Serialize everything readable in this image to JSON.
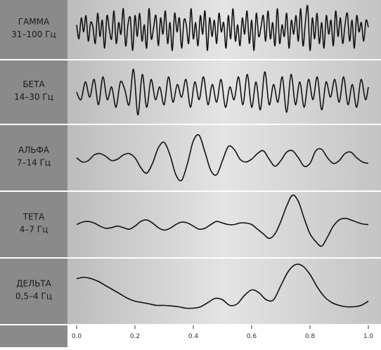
{
  "chart_data": [
    {
      "type": "line",
      "name": "ГАММА",
      "range": "31–100 Гц",
      "title": "",
      "xlabel": "",
      "ylabel": "",
      "xlim": [
        0,
        1
      ],
      "x": [
        0.0,
        0.008,
        0.016,
        0.024,
        0.032,
        0.04,
        0.048,
        0.056,
        0.064,
        0.072,
        0.08,
        0.088,
        0.096,
        0.104,
        0.112,
        0.12,
        0.128,
        0.136,
        0.144,
        0.152,
        0.16,
        0.168,
        0.176,
        0.184,
        0.192,
        0.2,
        0.208,
        0.216,
        0.224,
        0.232,
        0.24,
        0.248,
        0.256,
        0.264,
        0.272,
        0.28,
        0.288,
        0.296,
        0.304,
        0.312,
        0.32,
        0.328,
        0.336,
        0.344,
        0.352,
        0.36,
        0.368,
        0.376,
        0.384,
        0.392,
        0.4,
        0.408,
        0.416,
        0.424,
        0.432,
        0.44,
        0.448,
        0.456,
        0.464,
        0.472,
        0.48,
        0.488,
        0.496,
        0.504,
        0.512,
        0.52,
        0.528,
        0.536,
        0.544,
        0.552,
        0.56,
        0.568,
        0.576,
        0.584,
        0.592,
        0.6,
        0.608,
        0.616,
        0.624,
        0.632,
        0.64,
        0.648,
        0.656,
        0.664,
        0.672,
        0.68,
        0.688,
        0.696,
        0.704,
        0.712,
        0.72,
        0.728,
        0.736,
        0.744,
        0.752,
        0.76,
        0.768,
        0.776,
        0.784,
        0.792,
        0.8,
        0.808,
        0.816,
        0.824,
        0.832,
        0.84,
        0.848,
        0.856,
        0.864,
        0.872,
        0.88,
        0.888,
        0.896,
        0.904,
        0.912,
        0.92,
        0.928,
        0.936,
        0.944,
        0.952,
        0.96,
        0.968,
        0.976,
        0.984,
        0.992,
        1.0
      ],
      "y": [
        0.2,
        -0.4,
        0.5,
        -0.1,
        0.6,
        -0.5,
        0.3,
        0.1,
        -0.6,
        0.7,
        -0.3,
        0.4,
        -0.8,
        0.6,
        0.0,
        -0.4,
        0.8,
        -0.6,
        0.3,
        -0.2,
        0.9,
        -0.7,
        0.2,
        0.5,
        -0.9,
        0.6,
        -0.3,
        0.7,
        -0.5,
        0.2,
        -0.8,
        0.9,
        -0.4,
        0.1,
        0.6,
        -0.7,
        0.5,
        -0.2,
        0.8,
        -0.6,
        0.3,
        -0.9,
        0.7,
        -0.1,
        0.5,
        -0.8,
        0.4,
        0.2,
        -0.6,
        0.9,
        -0.4,
        0.3,
        -0.7,
        0.6,
        -0.2,
        0.8,
        -0.9,
        0.5,
        -0.3,
        0.4,
        -0.6,
        0.7,
        -0.1,
        0.3,
        -0.8,
        0.6,
        -0.4,
        0.9,
        -0.5,
        0.2,
        -0.7,
        0.5,
        -0.2,
        0.8,
        -0.6,
        0.4,
        -0.9,
        0.7,
        -0.3,
        0.1,
        0.6,
        -0.5,
        0.8,
        -0.4,
        0.3,
        -0.7,
        0.9,
        -0.6,
        0.2,
        -0.3,
        0.7,
        -0.8,
        0.4,
        -0.2,
        0.6,
        -0.5,
        0.9,
        -0.7,
        0.3,
        1.0,
        -0.9,
        0.5,
        -0.4,
        0.7,
        -0.6,
        0.3,
        -0.8,
        0.6,
        -0.2,
        0.4,
        -0.7,
        0.8,
        -0.3,
        0.5,
        -0.6,
        0.2,
        0.7,
        -0.5,
        0.4,
        -0.8,
        0.6,
        -0.1,
        0.3,
        -0.5,
        0.4,
        0.1
      ]
    },
    {
      "type": "line",
      "name": "БЕТА",
      "range": "14–30 Гц",
      "title": "",
      "xlabel": "",
      "ylabel": "",
      "xlim": [
        0,
        1
      ],
      "x": [
        0.0,
        0.015,
        0.03,
        0.045,
        0.06,
        0.075,
        0.09,
        0.105,
        0.12,
        0.135,
        0.15,
        0.165,
        0.18,
        0.195,
        0.21,
        0.225,
        0.24,
        0.255,
        0.27,
        0.285,
        0.3,
        0.315,
        0.33,
        0.345,
        0.36,
        0.375,
        0.39,
        0.405,
        0.42,
        0.435,
        0.45,
        0.465,
        0.48,
        0.495,
        0.51,
        0.525,
        0.54,
        0.555,
        0.57,
        0.585,
        0.6,
        0.615,
        0.63,
        0.645,
        0.66,
        0.675,
        0.69,
        0.705,
        0.72,
        0.735,
        0.75,
        0.765,
        0.78,
        0.795,
        0.81,
        0.825,
        0.84,
        0.855,
        0.87,
        0.885,
        0.9,
        0.915,
        0.93,
        0.945,
        0.96,
        0.975,
        0.99,
        1.0
      ],
      "y": [
        0.0,
        -0.3,
        0.4,
        -0.2,
        0.5,
        -0.5,
        0.6,
        -0.3,
        0.2,
        -0.6,
        0.4,
        0.1,
        -0.5,
        0.9,
        -0.9,
        0.7,
        -0.6,
        0.5,
        -0.3,
        0.2,
        -0.5,
        0.6,
        -0.4,
        0.3,
        -0.2,
        0.5,
        -0.6,
        0.4,
        -0.3,
        0.6,
        -0.5,
        0.3,
        -0.4,
        0.5,
        -0.6,
        0.2,
        -0.3,
        0.6,
        -0.5,
        0.7,
        -0.6,
        0.4,
        -0.7,
        0.8,
        -0.5,
        0.3,
        -0.4,
        0.6,
        -0.8,
        0.7,
        -0.5,
        0.4,
        -0.6,
        0.5,
        -0.3,
        0.6,
        -0.7,
        0.4,
        -0.2,
        0.5,
        -0.4,
        0.6,
        -0.5,
        0.3,
        -0.6,
        0.5,
        -0.3,
        0.2
      ]
    },
    {
      "type": "line",
      "name": "АЛЬФА",
      "range": "7–14 Гц",
      "title": "",
      "xlabel": "",
      "ylabel": "",
      "xlim": [
        0,
        1
      ],
      "x": [
        0.0,
        0.02,
        0.04,
        0.06,
        0.08,
        0.1,
        0.12,
        0.14,
        0.16,
        0.18,
        0.2,
        0.22,
        0.24,
        0.26,
        0.28,
        0.3,
        0.32,
        0.34,
        0.36,
        0.38,
        0.4,
        0.42,
        0.44,
        0.46,
        0.48,
        0.5,
        0.52,
        0.54,
        0.56,
        0.58,
        0.6,
        0.62,
        0.64,
        0.66,
        0.68,
        0.7,
        0.72,
        0.74,
        0.76,
        0.78,
        0.8,
        0.82,
        0.84,
        0.86,
        0.88,
        0.9,
        0.92,
        0.94,
        0.96,
        0.98,
        1.0
      ],
      "y": [
        0.0,
        -0.15,
        -0.1,
        0.1,
        0.15,
        0.05,
        -0.1,
        -0.05,
        0.1,
        0.15,
        0.0,
        -0.35,
        -0.55,
        -0.2,
        0.35,
        0.55,
        0.1,
        -0.6,
        -0.8,
        -0.2,
        0.6,
        0.8,
        0.2,
        -0.45,
        -0.6,
        -0.1,
        0.4,
        0.3,
        -0.05,
        -0.15,
        -0.05,
        0.15,
        0.25,
        -0.05,
        -0.3,
        -0.1,
        0.2,
        0.25,
        0.0,
        -0.3,
        -0.2,
        0.25,
        0.3,
        0.0,
        -0.2,
        -0.1,
        0.15,
        0.2,
        0.0,
        -0.15,
        -0.2
      ]
    },
    {
      "type": "line",
      "name": "ТЕТА",
      "range": "4–7 Гц",
      "title": "",
      "xlabel": "",
      "ylabel": "",
      "xlim": [
        0,
        1
      ],
      "x": [
        0.0,
        0.02,
        0.04,
        0.06,
        0.08,
        0.1,
        0.12,
        0.14,
        0.16,
        0.18,
        0.2,
        0.22,
        0.24,
        0.26,
        0.28,
        0.3,
        0.32,
        0.34,
        0.36,
        0.38,
        0.4,
        0.42,
        0.44,
        0.46,
        0.48,
        0.5,
        0.52,
        0.54,
        0.56,
        0.58,
        0.6,
        0.62,
        0.64,
        0.66,
        0.68,
        0.7,
        0.72,
        0.74,
        0.76,
        0.78,
        0.8,
        0.82,
        0.84,
        0.86,
        0.88,
        0.9,
        0.92,
        0.94,
        0.96,
        0.98,
        1.0
      ],
      "y": [
        0.0,
        0.08,
        0.1,
        0.05,
        -0.05,
        -0.12,
        -0.1,
        -0.05,
        -0.1,
        -0.15,
        -0.05,
        0.1,
        0.15,
        0.05,
        -0.1,
        -0.18,
        -0.12,
        0.0,
        0.08,
        0.05,
        -0.05,
        -0.15,
        -0.12,
        0.0,
        0.1,
        0.05,
        0.0,
        0.0,
        0.05,
        0.05,
        0.0,
        -0.15,
        -0.3,
        -0.45,
        -0.3,
        0.1,
        0.6,
        0.95,
        0.75,
        0.2,
        -0.3,
        -0.55,
        -0.7,
        -0.4,
        -0.05,
        0.15,
        0.2,
        0.15,
        0.08,
        0.02,
        0.0
      ]
    },
    {
      "type": "line",
      "name": "ДЕЛЬТА",
      "range": "0,5–4 Гц",
      "title": "",
      "xlabel": "",
      "ylabel": "",
      "xlim": [
        0,
        1
      ],
      "xticks": [
        0.0,
        0.2,
        0.4,
        0.6,
        0.8,
        1.0
      ],
      "xtick_labels": [
        "0.0",
        "0.2",
        "0.4",
        "0.6",
        "0.8",
        "1.0"
      ],
      "x": [
        0.0,
        0.025,
        0.05,
        0.075,
        0.1,
        0.125,
        0.15,
        0.175,
        0.2,
        0.225,
        0.25,
        0.275,
        0.3,
        0.325,
        0.35,
        0.375,
        0.4,
        0.425,
        0.45,
        0.475,
        0.5,
        0.525,
        0.55,
        0.575,
        0.6,
        0.625,
        0.65,
        0.675,
        0.7,
        0.725,
        0.75,
        0.775,
        0.8,
        0.825,
        0.85,
        0.875,
        0.9,
        0.925,
        0.95,
        0.975,
        1.0
      ],
      "y": [
        0.45,
        0.5,
        0.45,
        0.35,
        0.2,
        0.05,
        -0.1,
        -0.25,
        -0.35,
        -0.4,
        -0.45,
        -0.5,
        -0.5,
        -0.52,
        -0.55,
        -0.6,
        -0.6,
        -0.55,
        -0.4,
        -0.25,
        -0.3,
        -0.5,
        -0.45,
        -0.15,
        0.05,
        -0.05,
        -0.3,
        -0.3,
        0.2,
        0.7,
        0.95,
        0.9,
        0.6,
        0.15,
        -0.2,
        -0.4,
        -0.5,
        -0.55,
        -0.55,
        -0.5,
        -0.35
      ]
    }
  ]
}
